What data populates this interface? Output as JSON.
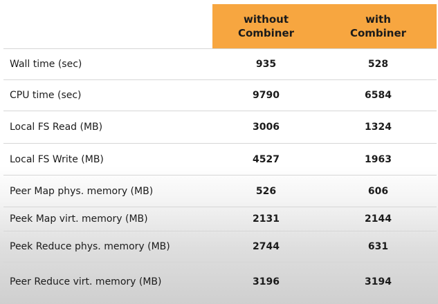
{
  "table": {
    "headers": {
      "col1_line1": "without",
      "col1_line2": "Combiner",
      "col2_line1": "with",
      "col2_line2": "Combiner"
    },
    "rows": [
      {
        "label": "Wall time (sec)",
        "without": "935",
        "with": "528"
      },
      {
        "label": "CPU time (sec)",
        "without": "9790",
        "with": "6584"
      },
      {
        "label": "Local FS Read (MB)",
        "without": "3006",
        "with": "1324"
      },
      {
        "label": "Local FS Write (MB)",
        "without": "4527",
        "with": "1963"
      },
      {
        "label": "Peer Map phys. memory (MB)",
        "without": "526",
        "with": "606"
      },
      {
        "label": "Peek Map virt. memory (MB)",
        "without": "2131",
        "with": "2144"
      },
      {
        "label": "Peek Reduce  phys. memory (MB)",
        "without": "2744",
        "with": "631"
      },
      {
        "label": "Peer Reduce  virt. memory (MB)",
        "without": "3196",
        "with": "3194"
      }
    ]
  }
}
